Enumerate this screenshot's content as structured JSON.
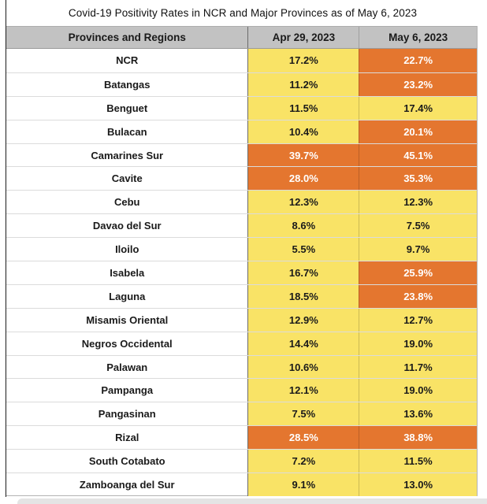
{
  "title": "Covid-19 Positivity Rates in NCR and Major Provinces as of May 6, 2023",
  "table": {
    "columns": [
      "Provinces and Regions",
      "Apr 29, 2023",
      "May 6, 2023"
    ],
    "rows": [
      {
        "province": "NCR",
        "apr29": "17.2%",
        "may6": "22.7%",
        "apr29_level": "yellow",
        "may6_level": "orange"
      },
      {
        "province": "Batangas",
        "apr29": "11.2%",
        "may6": "23.2%",
        "apr29_level": "yellow",
        "may6_level": "orange"
      },
      {
        "province": "Benguet",
        "apr29": "11.5%",
        "may6": "17.4%",
        "apr29_level": "yellow",
        "may6_level": "yellow"
      },
      {
        "province": "Bulacan",
        "apr29": "10.4%",
        "may6": "20.1%",
        "apr29_level": "yellow",
        "may6_level": "orange"
      },
      {
        "province": "Camarines Sur",
        "apr29": "39.7%",
        "may6": "45.1%",
        "apr29_level": "orange",
        "may6_level": "orange"
      },
      {
        "province": "Cavite",
        "apr29": "28.0%",
        "may6": "35.3%",
        "apr29_level": "orange",
        "may6_level": "orange"
      },
      {
        "province": "Cebu",
        "apr29": "12.3%",
        "may6": "12.3%",
        "apr29_level": "yellow",
        "may6_level": "yellow"
      },
      {
        "province": "Davao del Sur",
        "apr29": "8.6%",
        "may6": "7.5%",
        "apr29_level": "yellow",
        "may6_level": "yellow"
      },
      {
        "province": "Iloilo",
        "apr29": "5.5%",
        "may6": "9.7%",
        "apr29_level": "yellow",
        "may6_level": "yellow"
      },
      {
        "province": "Isabela",
        "apr29": "16.7%",
        "may6": "25.9%",
        "apr29_level": "yellow",
        "may6_level": "orange"
      },
      {
        "province": "Laguna",
        "apr29": "18.5%",
        "may6": "23.8%",
        "apr29_level": "yellow",
        "may6_level": "orange"
      },
      {
        "province": "Misamis Oriental",
        "apr29": "12.9%",
        "may6": "12.7%",
        "apr29_level": "yellow",
        "may6_level": "yellow"
      },
      {
        "province": "Negros Occidental",
        "apr29": "14.4%",
        "may6": "19.0%",
        "apr29_level": "yellow",
        "may6_level": "yellow"
      },
      {
        "province": "Palawan",
        "apr29": "10.6%",
        "may6": "11.7%",
        "apr29_level": "yellow",
        "may6_level": "yellow"
      },
      {
        "province": "Pampanga",
        "apr29": "12.1%",
        "may6": "19.0%",
        "apr29_level": "yellow",
        "may6_level": "yellow"
      },
      {
        "province": "Pangasinan",
        "apr29": "7.5%",
        "may6": "13.6%",
        "apr29_level": "yellow",
        "may6_level": "yellow"
      },
      {
        "province": "Rizal",
        "apr29": "28.5%",
        "may6": "38.8%",
        "apr29_level": "orange",
        "may6_level": "orange"
      },
      {
        "province": "South Cotabato",
        "apr29": "7.2%",
        "may6": "11.5%",
        "apr29_level": "yellow",
        "may6_level": "yellow"
      },
      {
        "province": "Zamboanga del Sur",
        "apr29": "9.1%",
        "may6": "13.0%",
        "apr29_level": "yellow",
        "may6_level": "yellow"
      }
    ]
  },
  "colors": {
    "yellow_cell": "#F9E366",
    "orange_cell": "#E4762F",
    "header_bg": "#C2C2C2",
    "orange_text": "#FFFFFF",
    "yellow_text": "#1A1A1A"
  },
  "chart_data": {
    "type": "table",
    "title": "Covid-19 Positivity Rates in NCR and Major Provinces as of May 6, 2023",
    "columns": [
      "Provinces and Regions",
      "Apr 29, 2023",
      "May 6, 2023"
    ],
    "units": "percent",
    "rows": [
      [
        "NCR",
        17.2,
        22.7
      ],
      [
        "Batangas",
        11.2,
        23.2
      ],
      [
        "Benguet",
        11.5,
        17.4
      ],
      [
        "Bulacan",
        10.4,
        20.1
      ],
      [
        "Camarines Sur",
        39.7,
        45.1
      ],
      [
        "Cavite",
        28.0,
        35.3
      ],
      [
        "Cebu",
        12.3,
        12.3
      ],
      [
        "Davao del Sur",
        8.6,
        7.5
      ],
      [
        "Iloilo",
        5.5,
        9.7
      ],
      [
        "Isabela",
        16.7,
        25.9
      ],
      [
        "Laguna",
        18.5,
        23.8
      ],
      [
        "Misamis Oriental",
        12.9,
        12.7
      ],
      [
        "Negros Occidental",
        14.4,
        19.0
      ],
      [
        "Palawan",
        10.6,
        11.7
      ],
      [
        "Pampanga",
        12.1,
        19.0
      ],
      [
        "Pangasinan",
        7.5,
        13.6
      ],
      [
        "Rizal",
        28.5,
        38.8
      ],
      [
        "South Cotabato",
        7.2,
        11.5
      ],
      [
        "Zamboanga del Sur",
        9.1,
        13.0
      ]
    ],
    "color_coding": {
      "orange": "cells with positivity >= 20%",
      "yellow": "cells with positivity < 20%"
    },
    "legend_position": "none",
    "grid": true
  }
}
